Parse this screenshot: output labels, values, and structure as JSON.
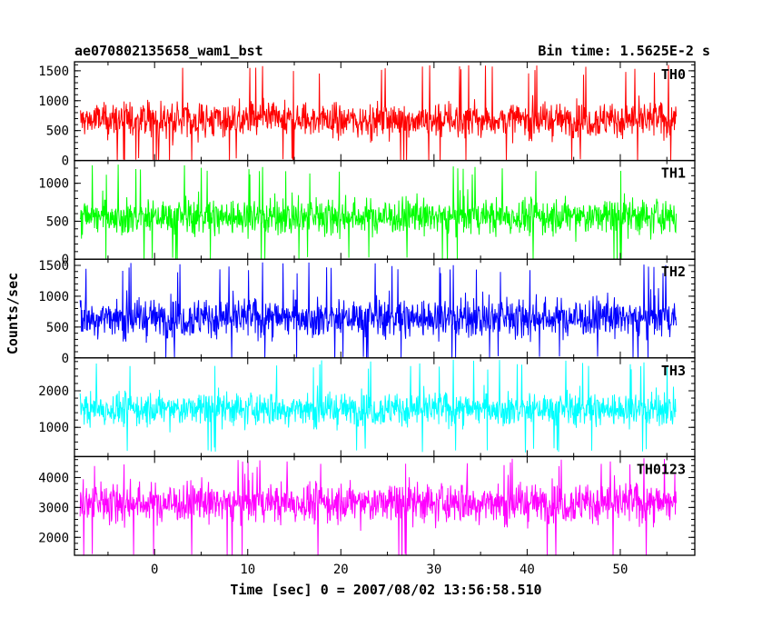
{
  "title_left": "ae070802135658_wam1_bst",
  "title_right": "Bin time: 1.5625E-2 s",
  "xlabel": "Time [sec] 0 = 2007/08/02 13:56:58.510",
  "ylabel": "Counts/sec",
  "chart_data": {
    "type": "line",
    "x_range": [
      -8.6,
      58.0
    ],
    "x_ticks": [
      0,
      10,
      20,
      30,
      40,
      50
    ],
    "data_range": [
      -8.0,
      56.0
    ],
    "bin_time_s": 0.015625,
    "panels": [
      {
        "name": "TH0",
        "color": "#ff0000",
        "ylim": [
          0,
          1650
        ],
        "yticks": [
          0,
          500,
          1000,
          1500
        ],
        "mean": 680,
        "envelope": [
          40,
          1350
        ],
        "max_spike": 1600
      },
      {
        "name": "TH1",
        "color": "#00ff00",
        "ylim": [
          0,
          1300
        ],
        "yticks": [
          0,
          500,
          1000
        ],
        "mean": 560,
        "envelope": [
          30,
          1100
        ],
        "max_spike": 1250
      },
      {
        "name": "TH2",
        "color": "#0000ff",
        "ylim": [
          0,
          1600
        ],
        "yticks": [
          0,
          500,
          1000,
          1500
        ],
        "mean": 650,
        "envelope": [
          30,
          1450
        ],
        "max_spike": 1550
      },
      {
        "name": "TH3",
        "color": "#00ffff",
        "ylim": [
          200,
          2900
        ],
        "yticks": [
          1000,
          2000
        ],
        "mean": 1500,
        "envelope": [
          450,
          2500
        ],
        "max_spike": 2850
      },
      {
        "name": "TH0123",
        "color": "#ff00ff",
        "ylim": [
          1400,
          4700
        ],
        "yticks": [
          2000,
          3000,
          4000
        ],
        "mean": 3150,
        "envelope": [
          1450,
          4450
        ],
        "max_spike": 4650
      }
    ]
  }
}
